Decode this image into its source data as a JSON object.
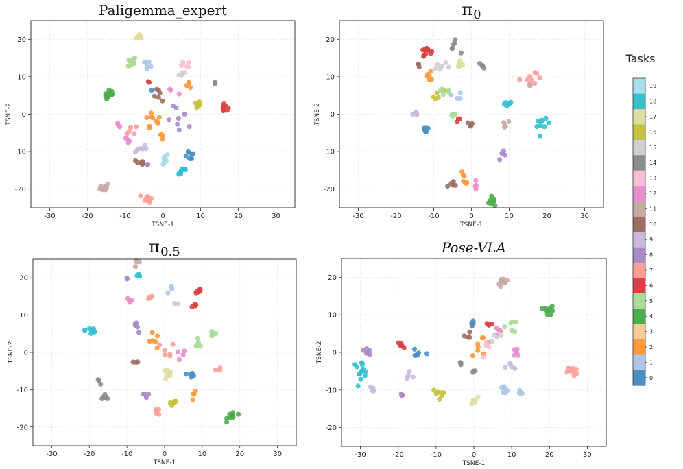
{
  "colorbar": {
    "title": "Tasks",
    "labels": [
      "0",
      "1",
      "2",
      "3",
      "4",
      "5",
      "6",
      "7",
      "8",
      "9",
      "10",
      "11",
      "12",
      "13",
      "14",
      "15",
      "16",
      "17",
      "18",
      "19"
    ],
    "colors": [
      "#4a90c2",
      "#aec7e8",
      "#ff9a3c",
      "#ffc996",
      "#4cad4c",
      "#a8dc98",
      "#d94244",
      "#ff9f9a",
      "#a98acb",
      "#c9b9dd",
      "#9c6f63",
      "#c9aba5",
      "#e68fcc",
      "#f6bfd8",
      "#8c8c8c",
      "#cfcfcf",
      "#c3c33f",
      "#dede9e",
      "#36c0d0",
      "#a6dfe8"
    ]
  },
  "chart_data": [
    {
      "type": "scatter",
      "title": "Paligemma_expert",
      "title_style": "plain",
      "xlabel": "TSNE-1",
      "ylabel": "TSNE-2",
      "xlim": [
        -35,
        35
      ],
      "ylim": [
        -25,
        25
      ],
      "xticks": [
        -30,
        -20,
        -10,
        0,
        10,
        20,
        30
      ],
      "yticks": [
        -20,
        -10,
        0,
        10,
        20
      ],
      "grid": true,
      "clusters": [
        {
          "task": 17,
          "x": -6,
          "y": 20.5,
          "n": 8,
          "spread": 1.0
        },
        {
          "task": 5,
          "x": -8.5,
          "y": 14,
          "n": 10,
          "spread": 1.5
        },
        {
          "task": 1,
          "x": -4,
          "y": 14,
          "n": 6,
          "spread": 1.3
        },
        {
          "task": 4,
          "x": -14,
          "y": 5,
          "n": 12,
          "spread": 1.3
        },
        {
          "task": 13,
          "x": 6,
          "y": 13,
          "n": 5,
          "spread": 1.0
        },
        {
          "task": 15,
          "x": 5,
          "y": 10.5,
          "n": 4,
          "spread": 0.8
        },
        {
          "task": 2,
          "x": 7,
          "y": 8,
          "n": 4,
          "spread": 0.8
        },
        {
          "task": 14,
          "x": 14,
          "y": 8.5,
          "n": 3,
          "spread": 0.5
        },
        {
          "task": 6,
          "x": -3.5,
          "y": 8.5,
          "n": 2,
          "spread": 0.3
        },
        {
          "task": 0,
          "x": -3,
          "y": 6.5,
          "n": 1,
          "spread": 0.2
        },
        {
          "task": 16,
          "x": 9,
          "y": 2.5,
          "n": 10,
          "spread": 0.9
        },
        {
          "task": 6,
          "x": 16.5,
          "y": 1.5,
          "n": 8,
          "spread": 0.9
        },
        {
          "task": 10,
          "x": -1,
          "y": 5,
          "n": 6,
          "spread": 2.0
        },
        {
          "task": 12,
          "x": 2,
          "y": 6,
          "n": 3,
          "spread": 2.0
        },
        {
          "task": 2,
          "x": -3,
          "y": -2,
          "n": 10,
          "spread": 2.5
        },
        {
          "task": 8,
          "x": 5,
          "y": -2,
          "n": 8,
          "spread": 3.5
        },
        {
          "task": 12,
          "x": -12,
          "y": -3,
          "n": 3,
          "spread": 0.8
        },
        {
          "task": 7,
          "x": -8,
          "y": -4,
          "n": 5,
          "spread": 1.5
        },
        {
          "task": 12,
          "x": -9,
          "y": -7,
          "n": 4,
          "spread": 1.0
        },
        {
          "task": 9,
          "x": -6,
          "y": -9,
          "n": 6,
          "spread": 1.5
        },
        {
          "task": 10,
          "x": -6,
          "y": -13,
          "n": 8,
          "spread": 1.0
        },
        {
          "task": 19,
          "x": 0,
          "y": -12,
          "n": 8,
          "spread": 1.5
        },
        {
          "task": 0,
          "x": 7,
          "y": -11,
          "n": 8,
          "spread": 1.5
        },
        {
          "task": 18,
          "x": 5,
          "y": -15,
          "n": 10,
          "spread": 1.5
        },
        {
          "task": 2,
          "x": 0,
          "y": -6,
          "n": 4,
          "spread": 1.0
        },
        {
          "task": 8,
          "x": -4,
          "y": -13.5,
          "n": 2,
          "spread": 0.3
        },
        {
          "task": 11,
          "x": -15.5,
          "y": -19.5,
          "n": 12,
          "spread": 1.0
        },
        {
          "task": 7,
          "x": -4,
          "y": -22.5,
          "n": 12,
          "spread": 1.0
        }
      ]
    },
    {
      "type": "scatter",
      "title": "π0",
      "title_style": "pi",
      "title_symbol": "π",
      "title_sub": "0",
      "xlabel": "TSNE-1",
      "ylabel": "TSNE-2",
      "xlim": [
        -35,
        35
      ],
      "ylim": [
        -25,
        25
      ],
      "xticks": [
        -30,
        -20,
        -10,
        0,
        10,
        20,
        30
      ],
      "yticks": [
        -20,
        -10,
        0,
        10,
        20
      ],
      "grid": true,
      "clusters": [
        {
          "task": 6,
          "x": -12,
          "y": 17,
          "n": 10,
          "spread": 1.2
        },
        {
          "task": 14,
          "x": -5,
          "y": 18,
          "n": 6,
          "spread": 1.5
        },
        {
          "task": 17,
          "x": -3,
          "y": 13,
          "n": 5,
          "spread": 1.0
        },
        {
          "task": 14,
          "x": 3,
          "y": 13,
          "n": 4,
          "spread": 0.8
        },
        {
          "task": 15,
          "x": -8,
          "y": 13,
          "n": 6,
          "spread": 2.0
        },
        {
          "task": 10,
          "x": -14,
          "y": 13,
          "n": 3,
          "spread": 0.8
        },
        {
          "task": 7,
          "x": 15,
          "y": 10,
          "n": 8,
          "spread": 2.0
        },
        {
          "task": 11,
          "x": 15.5,
          "y": 7.5,
          "n": 4,
          "spread": 1.0
        },
        {
          "task": 2,
          "x": -11,
          "y": 10,
          "n": 6,
          "spread": 1.5
        },
        {
          "task": 16,
          "x": -9,
          "y": 5,
          "n": 5,
          "spread": 1.5
        },
        {
          "task": 5,
          "x": -7,
          "y": 7,
          "n": 5,
          "spread": 1.5
        },
        {
          "task": 1,
          "x": -3,
          "y": 5,
          "n": 4,
          "spread": 1.5
        },
        {
          "task": 18,
          "x": 9.5,
          "y": 3,
          "n": 6,
          "spread": 1.0
        },
        {
          "task": 18,
          "x": 19,
          "y": -3,
          "n": 10,
          "spread": 1.5
        },
        {
          "task": 9,
          "x": -15,
          "y": 0,
          "n": 5,
          "spread": 1.0
        },
        {
          "task": 5,
          "x": -5,
          "y": 0,
          "n": 4,
          "spread": 0.8
        },
        {
          "task": 0,
          "x": -12,
          "y": -4,
          "n": 6,
          "spread": 1.0
        },
        {
          "task": 10,
          "x": 0,
          "y": -3,
          "n": 4,
          "spread": 1.0
        },
        {
          "task": 11,
          "x": 9,
          "y": -2,
          "n": 4,
          "spread": 1.0
        },
        {
          "task": 8,
          "x": 8,
          "y": -11,
          "n": 4,
          "spread": 1.0
        },
        {
          "task": 6,
          "x": -3,
          "y": -2,
          "n": 3,
          "spread": 1.0
        },
        {
          "task": 2,
          "x": -2,
          "y": -17,
          "n": 6,
          "spread": 1.5
        },
        {
          "task": 10,
          "x": -5,
          "y": -19,
          "n": 5,
          "spread": 1.5
        },
        {
          "task": 12,
          "x": 1,
          "y": -19,
          "n": 4,
          "spread": 1.0
        },
        {
          "task": 4,
          "x": 5,
          "y": -23,
          "n": 8,
          "spread": 1.0
        }
      ]
    },
    {
      "type": "scatter",
      "title": "π0.5",
      "title_style": "pi",
      "title_symbol": "π",
      "title_sub": "0.5",
      "xlabel": "TSNE-1",
      "ylabel": "TSNE-2",
      "xlim": [
        -35,
        35
      ],
      "ylim": [
        -25,
        25
      ],
      "xticks": [
        -30,
        -20,
        -10,
        0,
        10,
        20,
        30
      ],
      "yticks": [
        -20,
        -10,
        0,
        10,
        20
      ],
      "grid": true,
      "clusters": [
        {
          "task": 11,
          "x": -7,
          "y": 24,
          "n": 4,
          "spread": 1.0
        },
        {
          "task": 18,
          "x": -7,
          "y": 20,
          "n": 4,
          "spread": 1.0
        },
        {
          "task": 8,
          "x": -10,
          "y": 19.5,
          "n": 2,
          "spread": 0.5
        },
        {
          "task": 1,
          "x": 2,
          "y": 17,
          "n": 4,
          "spread": 1.0
        },
        {
          "task": 6,
          "x": 9,
          "y": 16.5,
          "n": 6,
          "spread": 0.8
        },
        {
          "task": 6,
          "x": 8,
          "y": 12.5,
          "n": 4,
          "spread": 0.8
        },
        {
          "task": 7,
          "x": -4,
          "y": 15,
          "n": 4,
          "spread": 1.0
        },
        {
          "task": 12,
          "x": -9,
          "y": 14,
          "n": 4,
          "spread": 1.0
        },
        {
          "task": 15,
          "x": 3,
          "y": 13,
          "n": 4,
          "spread": 1.0
        },
        {
          "task": 18,
          "x": -19.5,
          "y": 6,
          "n": 10,
          "spread": 1.5
        },
        {
          "task": 5,
          "x": 13,
          "y": 5,
          "n": 4,
          "spread": 1.0
        },
        {
          "task": 5,
          "x": 9,
          "y": 2,
          "n": 6,
          "spread": 1.0
        },
        {
          "task": 8,
          "x": -7,
          "y": 7,
          "n": 5,
          "spread": 2.0
        },
        {
          "task": 2,
          "x": -3,
          "y": 3,
          "n": 6,
          "spread": 2.0
        },
        {
          "task": 7,
          "x": 0,
          "y": 0,
          "n": 6,
          "spread": 2.5
        },
        {
          "task": 12,
          "x": 4,
          "y": -1,
          "n": 4,
          "spread": 2.0
        },
        {
          "task": 10,
          "x": -8,
          "y": -3,
          "n": 3,
          "spread": 1.0
        },
        {
          "task": 17,
          "x": 1,
          "y": -6,
          "n": 8,
          "spread": 1.3
        },
        {
          "task": 0,
          "x": 7,
          "y": -6,
          "n": 6,
          "spread": 1.5
        },
        {
          "task": 7,
          "x": 14,
          "y": -5,
          "n": 3,
          "spread": 1.0
        },
        {
          "task": 14,
          "x": -17.5,
          "y": -8,
          "n": 3,
          "spread": 0.6
        },
        {
          "task": 14,
          "x": -15.5,
          "y": -12,
          "n": 6,
          "spread": 0.8
        },
        {
          "task": 8,
          "x": -5,
          "y": -11,
          "n": 4,
          "spread": 1.2
        },
        {
          "task": 16,
          "x": 2,
          "y": -14,
          "n": 6,
          "spread": 1.2
        },
        {
          "task": 2,
          "x": 8,
          "y": -12,
          "n": 4,
          "spread": 1.2
        },
        {
          "task": 7,
          "x": -2,
          "y": -16,
          "n": 5,
          "spread": 1.0
        },
        {
          "task": 4,
          "x": 18,
          "y": -17,
          "n": 10,
          "spread": 1.2
        }
      ]
    },
    {
      "type": "scatter",
      "title": "Pose-VLA",
      "title_style": "italic",
      "xlabel": "TSNE-1",
      "ylabel": "TSNE-2",
      "xlim": [
        -35,
        35
      ],
      "ylim": [
        -25,
        25
      ],
      "xticks": [
        -30,
        -20,
        -10,
        0,
        10,
        20,
        30
      ],
      "yticks": [
        -20,
        -10,
        0,
        10,
        20
      ],
      "grid": true,
      "clusters": [
        {
          "task": 11,
          "x": 8,
          "y": 19,
          "n": 10,
          "spread": 1.5
        },
        {
          "task": 4,
          "x": 20,
          "y": 11,
          "n": 10,
          "spread": 1.2
        },
        {
          "task": 6,
          "x": 4,
          "y": 8,
          "n": 4,
          "spread": 1.0
        },
        {
          "task": 12,
          "x": 6,
          "y": 6,
          "n": 4,
          "spread": 1.5
        },
        {
          "task": 5,
          "x": 10,
          "y": 7,
          "n": 6,
          "spread": 1.5
        },
        {
          "task": 10,
          "x": -1,
          "y": 5,
          "n": 5,
          "spread": 1.5
        },
        {
          "task": 0,
          "x": 0,
          "y": 8,
          "n": 3,
          "spread": 1.0
        },
        {
          "task": 2,
          "x": 2,
          "y": 2,
          "n": 8,
          "spread": 2.5
        },
        {
          "task": 13,
          "x": 4,
          "y": 1,
          "n": 4,
          "spread": 2.0
        },
        {
          "task": 15,
          "x": 6,
          "y": 4,
          "n": 4,
          "spread": 1.5
        },
        {
          "task": 18,
          "x": -30,
          "y": -4.5,
          "n": 14,
          "spread": 2.0
        },
        {
          "task": 8,
          "x": -28,
          "y": 0.5,
          "n": 6,
          "spread": 1.0
        },
        {
          "task": 6,
          "x": -19.5,
          "y": 2,
          "n": 6,
          "spread": 0.8
        },
        {
          "task": 0,
          "x": -15,
          "y": -1,
          "n": 6,
          "spread": 1.5
        },
        {
          "task": 14,
          "x": -4,
          "y": -3,
          "n": 3,
          "spread": 0.8
        },
        {
          "task": 14,
          "x": 0,
          "y": -5,
          "n": 3,
          "spread": 0.5
        },
        {
          "task": 9,
          "x": -27,
          "y": -10,
          "n": 4,
          "spread": 1.0
        },
        {
          "task": 9,
          "x": -17,
          "y": -6,
          "n": 4,
          "spread": 1.0
        },
        {
          "task": 8,
          "x": -19,
          "y": -11,
          "n": 3,
          "spread": 0.5
        },
        {
          "task": 16,
          "x": -9.5,
          "y": -11,
          "n": 8,
          "spread": 1.2
        },
        {
          "task": 17,
          "x": 0,
          "y": -13,
          "n": 6,
          "spread": 1.0
        },
        {
          "task": 1,
          "x": 8,
          "y": -10,
          "n": 8,
          "spread": 1.2
        },
        {
          "task": 1,
          "x": 12,
          "y": -11,
          "n": 4,
          "spread": 1.0
        },
        {
          "task": 12,
          "x": 11,
          "y": -0.5,
          "n": 6,
          "spread": 1.5
        },
        {
          "task": 9,
          "x": 10,
          "y": -4,
          "n": 5,
          "spread": 1.5
        },
        {
          "task": 7,
          "x": 26,
          "y": -5,
          "n": 10,
          "spread": 1.2
        }
      ]
    }
  ]
}
